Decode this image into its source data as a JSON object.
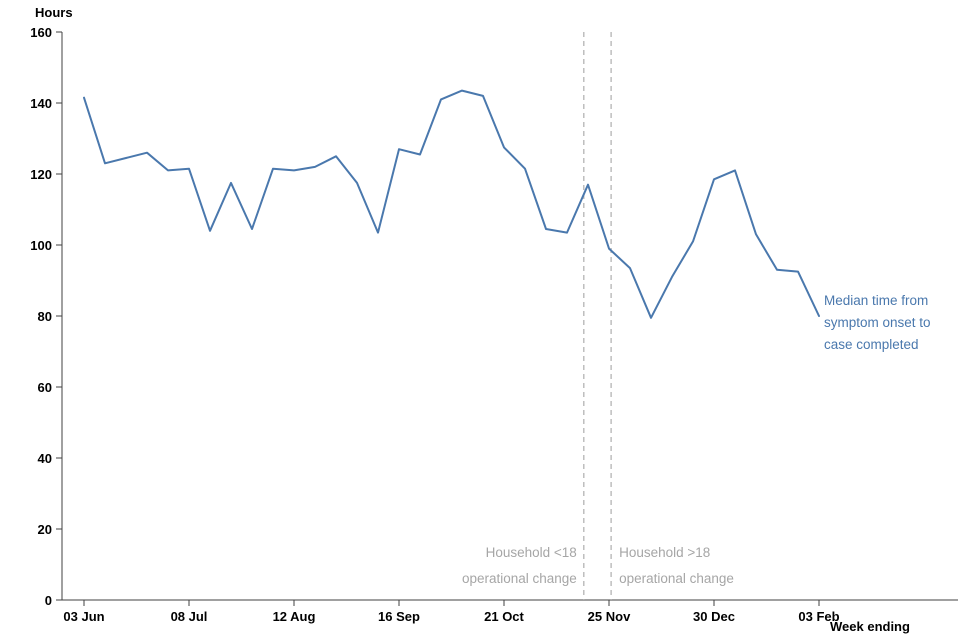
{
  "chart_data": {
    "type": "line",
    "title": "",
    "y_axis_label": "Hours",
    "x_axis_label": "Week ending",
    "ylim": [
      0,
      160
    ],
    "ytick_step": 20,
    "x_unit": "week",
    "x_tick_labels": [
      "03 Jun",
      "08 Jul",
      "12 Aug",
      "16 Sep",
      "21 Oct",
      "25 Nov",
      "30 Dec",
      "03 Feb"
    ],
    "x_tick_indices": [
      0,
      5,
      10,
      15,
      20,
      25,
      30,
      35
    ],
    "series": [
      {
        "name": "Median time from symptom onset to case completed",
        "values": [
          141.5,
          123,
          124.5,
          126,
          121,
          121.5,
          104,
          117.5,
          104.5,
          121.5,
          121,
          122,
          125,
          117.5,
          103.5,
          127,
          125.5,
          141,
          143.5,
          142,
          127.5,
          121.5,
          104.5,
          103.5,
          117,
          99,
          93.5,
          79.5,
          91,
          101,
          118.5,
          121,
          103,
          93,
          92.5,
          80
        ]
      }
    ],
    "series_annotation": {
      "lines": [
        "Median time from",
        "symptom onset to",
        "case completed"
      ]
    },
    "vertical_reference_lines": [
      {
        "position": 23.8,
        "label_lines": [
          "Household <18",
          "operational change"
        ],
        "label_align": "right"
      },
      {
        "position": 25.1,
        "label_lines": [
          "Household >18",
          "operational change"
        ],
        "label_align": "left"
      }
    ],
    "colors": {
      "line": "#4a78ad",
      "annotation_text": "#4a78ad",
      "reference_line": "#b4b4b4",
      "reference_text": "#a6a6a6",
      "axis": "#404040",
      "tick_text": "#000000"
    },
    "grid": false,
    "legend_position": "annotation-right"
  }
}
